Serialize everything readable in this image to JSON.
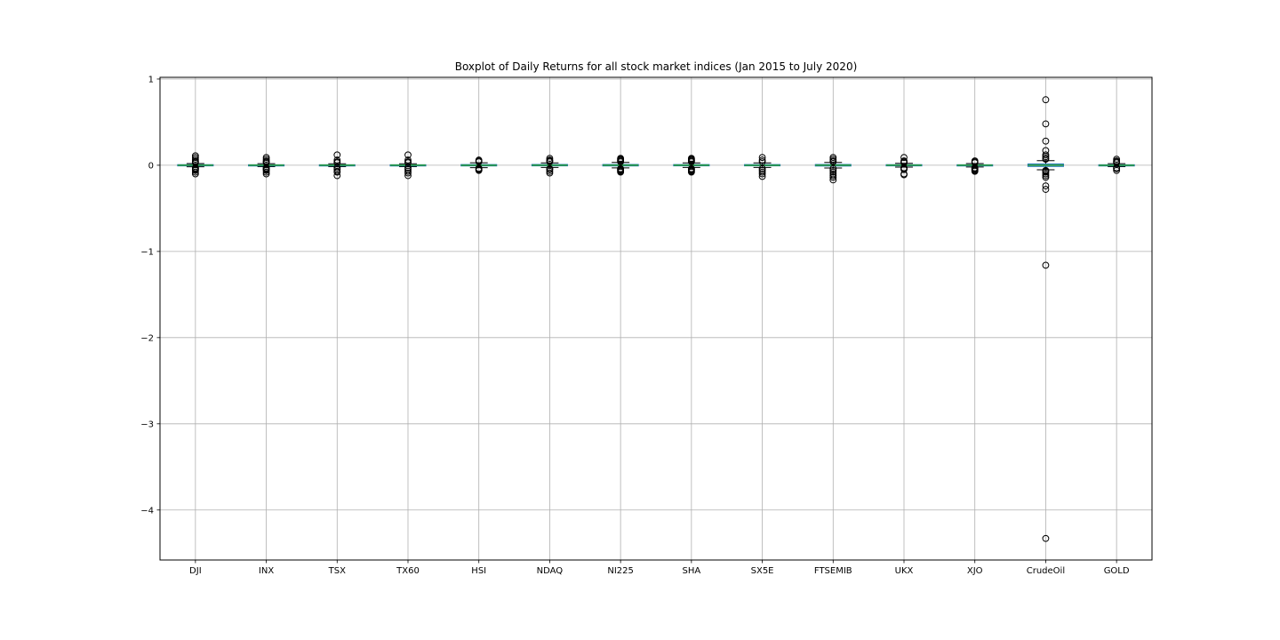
{
  "chart_data": {
    "type": "boxplot",
    "title": "Boxplot of Daily Returns for all stock market indices (Jan 2015 to July 2020)",
    "xlabel": "",
    "ylabel": "",
    "ylim": [
      -4.58,
      1.02
    ],
    "yticks": [
      1,
      0,
      -1,
      -2,
      -3,
      -4
    ],
    "ytick_labels": [
      "1",
      "0",
      "−1",
      "−2",
      "−3",
      "−4"
    ],
    "grid": true,
    "colors": {
      "box": "#1f77b4",
      "median": "#2ca02c",
      "whisker": "#000000",
      "flier": "#000000",
      "grid": "#b0b0b0"
    },
    "categories": [
      "DJI",
      "INX",
      "TSX",
      "TX60",
      "HSI",
      "NDAQ",
      "NI225",
      "SHA",
      "SX5E",
      "FTSEMIB",
      "UKX",
      "XJO",
      "CrudeOil",
      "GOLD"
    ],
    "series": [
      {
        "name": "DJI",
        "q1": -0.004,
        "median": 0.001,
        "q3": 0.006,
        "whisker_low": -0.018,
        "whisker_high": 0.02,
        "fliers": [
          0.11,
          0.09,
          0.07,
          0.05,
          0.04,
          0.03,
          -0.03,
          -0.04,
          -0.05,
          -0.06,
          -0.08,
          -0.1
        ]
      },
      {
        "name": "INX",
        "q1": -0.004,
        "median": 0.001,
        "q3": 0.005,
        "whisker_low": -0.017,
        "whisker_high": 0.018,
        "fliers": [
          0.09,
          0.07,
          0.05,
          0.04,
          0.03,
          -0.03,
          -0.04,
          -0.05,
          -0.06,
          -0.08,
          -0.1
        ]
      },
      {
        "name": "TSX",
        "q1": -0.004,
        "median": 0.001,
        "q3": 0.005,
        "whisker_low": -0.016,
        "whisker_high": 0.017,
        "fliers": [
          0.12,
          0.06,
          0.04,
          0.03,
          -0.03,
          -0.05,
          -0.07,
          -0.08,
          -0.12
        ]
      },
      {
        "name": "TX60",
        "q1": -0.004,
        "median": 0.001,
        "q3": 0.005,
        "whisker_low": -0.016,
        "whisker_high": 0.017,
        "fliers": [
          0.12,
          0.06,
          0.04,
          0.03,
          -0.03,
          -0.05,
          -0.07,
          -0.09,
          -0.12
        ]
      },
      {
        "name": "HSI",
        "q1": -0.007,
        "median": 0.0,
        "q3": 0.007,
        "whisker_low": -0.028,
        "whisker_high": 0.029,
        "fliers": [
          0.06,
          0.05,
          0.04,
          -0.035,
          -0.045,
          -0.055,
          -0.06
        ]
      },
      {
        "name": "NDAQ",
        "q1": -0.006,
        "median": 0.001,
        "q3": 0.008,
        "whisker_low": -0.025,
        "whisker_high": 0.027,
        "fliers": [
          0.08,
          0.06,
          0.05,
          0.04,
          -0.04,
          -0.05,
          -0.07,
          -0.09
        ]
      },
      {
        "name": "NI225",
        "q1": -0.007,
        "median": 0.001,
        "q3": 0.008,
        "whisker_low": -0.03,
        "whisker_high": 0.032,
        "fliers": [
          0.08,
          0.07,
          0.06,
          0.05,
          0.04,
          -0.04,
          -0.05,
          -0.06,
          -0.07,
          -0.08
        ]
      },
      {
        "name": "SHA",
        "q1": -0.006,
        "median": 0.001,
        "q3": 0.007,
        "whisker_low": -0.025,
        "whisker_high": 0.027,
        "fliers": [
          0.08,
          0.07,
          0.06,
          0.05,
          0.04,
          -0.04,
          -0.05,
          -0.06,
          -0.07,
          -0.08
        ]
      },
      {
        "name": "SX5E",
        "q1": -0.006,
        "median": 0.0,
        "q3": 0.007,
        "whisker_low": -0.026,
        "whisker_high": 0.027,
        "fliers": [
          0.09,
          0.06,
          0.04,
          -0.04,
          -0.06,
          -0.08,
          -0.1,
          -0.13
        ]
      },
      {
        "name": "FTSEMIB",
        "q1": -0.008,
        "median": 0.001,
        "q3": 0.008,
        "whisker_low": -0.032,
        "whisker_high": 0.033,
        "fliers": [
          0.09,
          0.07,
          0.05,
          0.04,
          -0.04,
          -0.06,
          -0.08,
          -0.1,
          -0.12,
          -0.14,
          -0.17
        ]
      },
      {
        "name": "UKX",
        "q1": -0.005,
        "median": 0.001,
        "q3": 0.006,
        "whisker_low": -0.022,
        "whisker_high": 0.022,
        "fliers": [
          0.09,
          0.05,
          0.04,
          0.03,
          -0.03,
          -0.04,
          -0.05,
          -0.1,
          -0.11
        ]
      },
      {
        "name": "XJO",
        "q1": -0.005,
        "median": 0.001,
        "q3": 0.005,
        "whisker_low": -0.02,
        "whisker_high": 0.02,
        "fliers": [
          0.05,
          0.04,
          0.03,
          -0.03,
          -0.04,
          -0.05,
          -0.06,
          -0.07
        ]
      },
      {
        "name": "CrudeOil",
        "q1": -0.013,
        "median": 0.001,
        "q3": 0.014,
        "whisker_low": -0.052,
        "whisker_high": 0.053,
        "fliers": [
          0.76,
          0.48,
          0.28,
          0.17,
          0.12,
          0.1,
          0.08,
          0.07,
          -0.06,
          -0.07,
          -0.08,
          -0.1,
          -0.12,
          -0.14,
          -0.24,
          -0.28,
          -1.16,
          -4.33
        ]
      },
      {
        "name": "GOLD",
        "q1": -0.004,
        "median": 0.0,
        "q3": 0.005,
        "whisker_low": -0.017,
        "whisker_high": 0.018,
        "fliers": [
          0.07,
          0.05,
          0.04,
          0.03,
          -0.03,
          -0.04,
          -0.06
        ]
      }
    ]
  }
}
